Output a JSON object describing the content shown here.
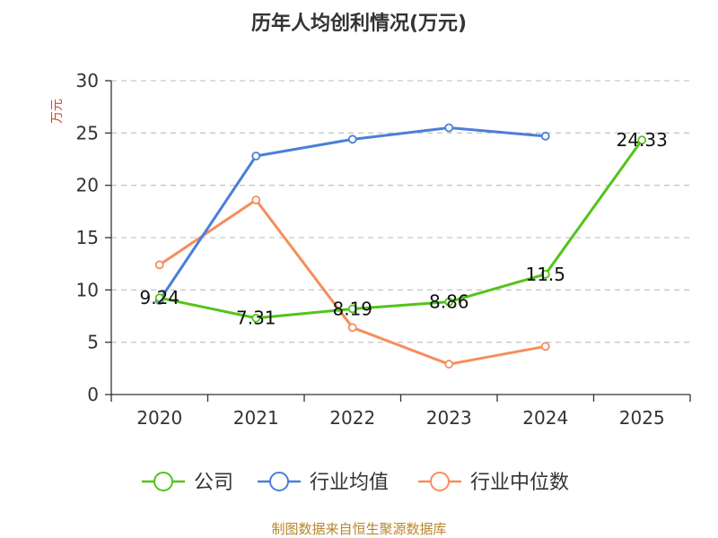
{
  "chart_data": {
    "type": "line",
    "title": "历年人均创利情况(万元)",
    "ylabel": "万元",
    "xlabel": "",
    "categories": [
      "2020",
      "2021",
      "2022",
      "2023",
      "2024",
      "2025"
    ],
    "ylim": [
      0,
      30
    ],
    "yticks": [
      0,
      5,
      10,
      15,
      20,
      25,
      30
    ],
    "grid": true,
    "legend_position": "bottom",
    "series": [
      {
        "name": "公司",
        "color": "#52c41a",
        "values": [
          9.24,
          7.31,
          8.19,
          8.86,
          11.5,
          24.33
        ],
        "labels": [
          "9.24",
          "7.31",
          "8.19",
          "8.86",
          "11.5",
          "24.33"
        ]
      },
      {
        "name": "行业均值",
        "color": "#4a7fd8",
        "values": [
          9.0,
          22.8,
          24.4,
          25.5,
          24.7,
          null
        ]
      },
      {
        "name": "行业中位数",
        "color": "#f58e5a",
        "values": [
          12.4,
          18.6,
          6.4,
          2.9,
          4.6,
          null
        ]
      }
    ]
  },
  "footer": {
    "source": "制图数据来自恒生聚源数据库"
  }
}
